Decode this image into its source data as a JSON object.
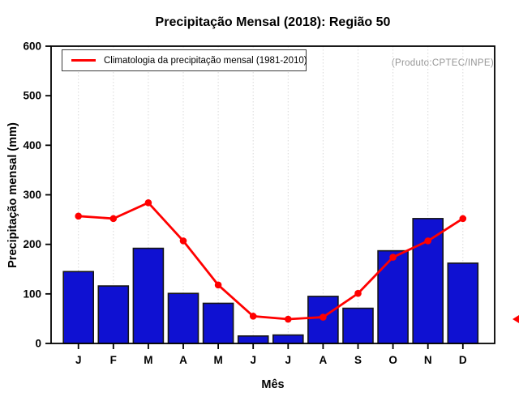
{
  "colors": {
    "bar_fill": "#0f11d2",
    "bar_border": "#151515",
    "line": "#ff0000",
    "grid": "#d9d9d9",
    "axis": "#000000",
    "source_text": "#969696",
    "background": "#ffffff"
  },
  "annotations": {
    "source": "(Produto:CPTEC/INPE)",
    "right_marker_value": 49
  },
  "chart_data": {
    "type": "bar",
    "title": "Precipitação Mensal (2018): Região 50",
    "xlabel": "Mês",
    "ylabel": "Precipitação mensal (mm)",
    "categories": [
      "J",
      "F",
      "M",
      "A",
      "M",
      "J",
      "J",
      "A",
      "S",
      "O",
      "N",
      "D"
    ],
    "series": [
      {
        "name": "Precipitação mensal (2018)",
        "type": "bar",
        "color": "#0f11d2",
        "values": [
          145,
          116,
          192,
          101,
          81,
          15,
          17,
          95,
          71,
          187,
          252,
          162
        ]
      },
      {
        "name": "Climatologia da precipitação mensal (1981-2010)",
        "type": "line",
        "color": "#ff0000",
        "values": [
          257,
          252,
          284,
          207,
          118,
          55,
          49,
          53,
          101,
          174,
          207,
          252
        ]
      }
    ],
    "ylim": [
      0,
      600
    ],
    "y_ticks": [
      0,
      100,
      200,
      300,
      400,
      500,
      600
    ],
    "grid": "vertical-dotted",
    "legend_position": "top-left"
  }
}
